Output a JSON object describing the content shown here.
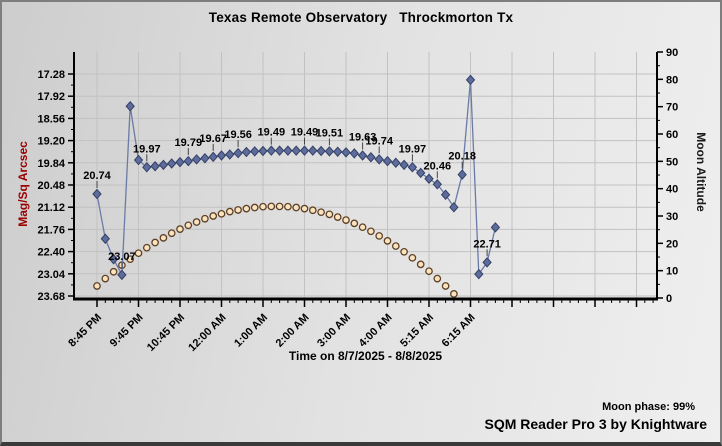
{
  "header": {
    "title": "Texas Remote Observatory   Throckmorton Tx"
  },
  "footer": {
    "moon_phase": "Moon phase: 99%",
    "app_name": "SQM Reader Pro 3 by Knightware"
  },
  "chart_data": {
    "type": "line",
    "title": "Texas Remote Observatory   Throckmorton Tx",
    "grid": true,
    "legend": "none",
    "x_axis": {
      "label": "Time on 8/7/2025 - 8/8/2025",
      "tick_labels": [
        "8:45 PM",
        "9:45 PM",
        "10:45 PM",
        "12:00 AM",
        "1:00 AM",
        "2:00 AM",
        "3:00 AM",
        "4:00 AM",
        "5:15 AM",
        "6:15 AM"
      ],
      "ticks_every_n_points": 5
    },
    "y_left": {
      "label": "Mag/Sq Arcsec",
      "tick_labels": [
        "17.28",
        "17.92",
        "18.56",
        "19.20",
        "19.84",
        "20.48",
        "21.12",
        "21.76",
        "22.40",
        "23.04",
        "23.68"
      ],
      "inverted": true,
      "label_color": "#990000"
    },
    "y_right": {
      "label": "Moon Altitude",
      "tick_labels": [
        "90",
        "80",
        "70",
        "60",
        "50",
        "40",
        "30",
        "20",
        "10",
        "0"
      ],
      "range": [
        0,
        90
      ]
    },
    "series": [
      {
        "name": "SQM sky brightness (Mag/Sq Arcsec)",
        "marker": "diamond",
        "marker_fill": "#5d6c9b",
        "marker_stroke": "#333f66",
        "line_color": "#6b7ba8",
        "values": [
          20.74,
          22.03,
          22.62,
          23.07,
          18.21,
          19.76,
          19.97,
          19.94,
          19.9,
          19.86,
          19.82,
          19.79,
          19.74,
          19.71,
          19.67,
          19.63,
          19.6,
          19.56,
          19.53,
          19.51,
          19.5,
          19.49,
          19.49,
          19.49,
          19.49,
          19.49,
          19.49,
          19.5,
          19.51,
          19.52,
          19.54,
          19.57,
          19.63,
          19.68,
          19.74,
          19.79,
          19.84,
          19.9,
          19.97,
          20.13,
          20.3,
          20.46,
          20.76,
          21.12,
          20.18,
          17.45,
          23.05,
          22.71,
          21.7
        ]
      },
      {
        "name": "Moon altitude (degrees)",
        "marker": "circle",
        "marker_fill": "#fbe3c0",
        "marker_stroke": "#5d4024",
        "line_color": "none",
        "values": [
          4.4,
          7.1,
          9.6,
          12.0,
          14.2,
          16.4,
          18.4,
          20.3,
          22.0,
          23.7,
          25.2,
          26.6,
          27.8,
          29.0,
          30.0,
          30.8,
          31.6,
          32.2,
          32.7,
          33.1,
          33.4,
          33.5,
          33.5,
          33.4,
          33.1,
          32.7,
          32.1,
          31.4,
          30.6,
          29.6,
          28.5,
          27.3,
          25.9,
          24.4,
          22.7,
          20.9,
          19.0,
          16.9,
          14.7,
          12.3,
          9.8,
          7.1,
          4.4,
          1.5
        ]
      }
    ],
    "point_labels": [
      {
        "i": 0,
        "text": "20.74"
      },
      {
        "i": 3,
        "text": "23.07"
      },
      {
        "i": 6,
        "text": "19.97"
      },
      {
        "i": 11,
        "text": "19.79"
      },
      {
        "i": 14,
        "text": "19.67"
      },
      {
        "i": 17,
        "text": "19.56"
      },
      {
        "i": 21,
        "text": "19.49"
      },
      {
        "i": 25,
        "text": "19.49"
      },
      {
        "i": 28,
        "text": "19.51"
      },
      {
        "i": 32,
        "text": "19.63"
      },
      {
        "i": 34,
        "text": "19.74"
      },
      {
        "i": 38,
        "text": "19.97"
      },
      {
        "i": 41,
        "text": "20.46"
      },
      {
        "i": 44,
        "text": "20.18"
      },
      {
        "i": 47,
        "text": "22.71"
      }
    ],
    "colors": {
      "grid": "#c2c2c2",
      "axis": "#000000"
    }
  }
}
